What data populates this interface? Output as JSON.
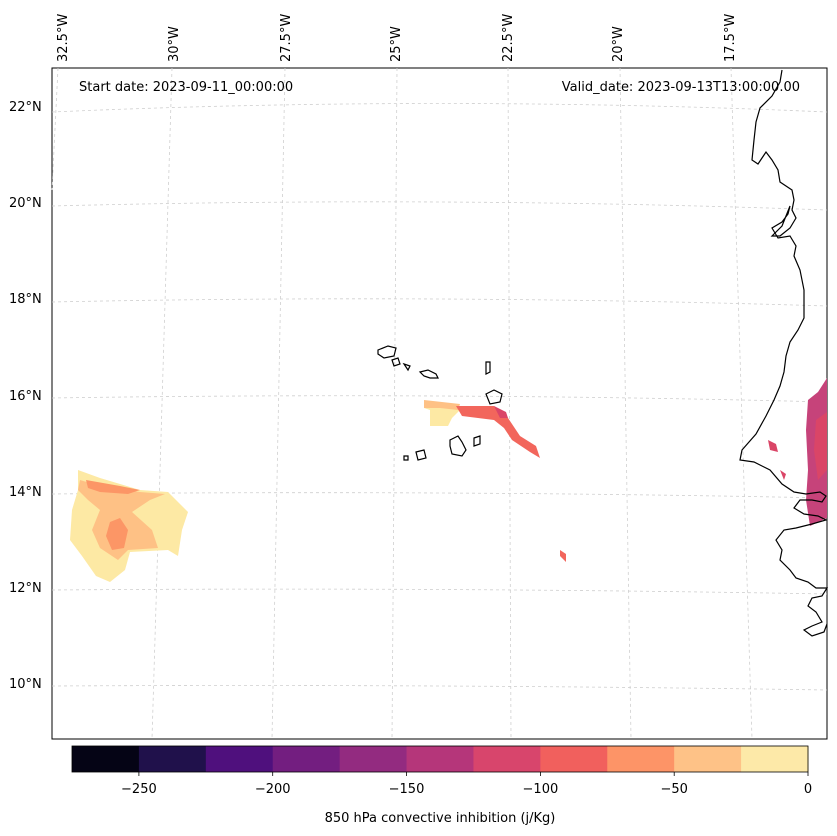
{
  "map": {
    "start_date": "Start date: 2023-09-11_00:00:00",
    "valid_date": "Valid_date: 2023-09-13T13:00:00.00",
    "longitude_labels": [
      "32.5°W",
      "30°W",
      "27.5°W",
      "25°W",
      "22.5°W",
      "20°W",
      "17.5°W"
    ],
    "latitude_labels": [
      "22°N",
      "20°N",
      "18°N",
      "16°N",
      "14°N",
      "12°N",
      "10°N"
    ],
    "field_colors": [
      "#fde9a4",
      "#fec185",
      "#fc9666",
      "#f2665c",
      "#da4567",
      "#c6437a"
    ]
  },
  "colorbar": {
    "label": "850 hPa convective inhibition (j/Kg)",
    "ticks": [
      "−250",
      "−200",
      "−150",
      "−100",
      "−50",
      "0"
    ],
    "colors": [
      "#050415",
      "#20114b",
      "#4f107d",
      "#731e80",
      "#932b80",
      "#b5367a",
      "#d8456c",
      "#f1605d",
      "#fd9467",
      "#fec287",
      "#fde9a8"
    ]
  }
}
